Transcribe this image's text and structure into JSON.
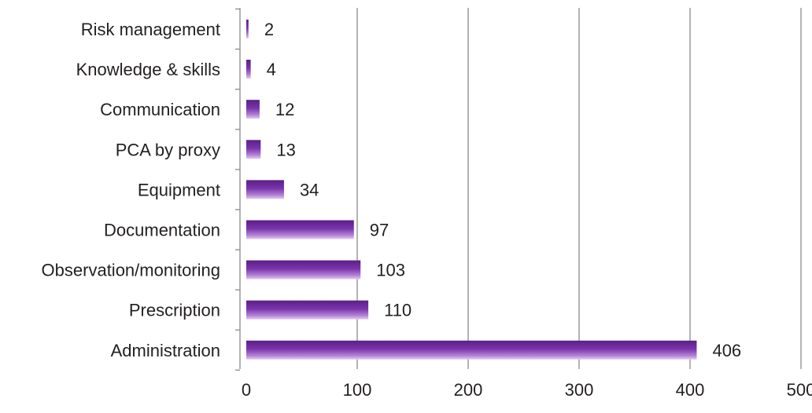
{
  "chart_data": {
    "type": "bar",
    "orientation": "horizontal",
    "categories": [
      "Risk management",
      "Knowledge & skills",
      "Communication",
      "PCA by proxy",
      "Equipment",
      "Documentation",
      "Observation/monitoring",
      "Prescription",
      "Administration"
    ],
    "values": [
      2,
      4,
      12,
      13,
      34,
      97,
      103,
      110,
      406
    ],
    "xlim": [
      0,
      500
    ],
    "xticks": [
      "0",
      "100",
      "200",
      "300",
      "400",
      "500"
    ],
    "grid": "vertical",
    "bar_color": "#7030a0",
    "data_labels": true
  }
}
